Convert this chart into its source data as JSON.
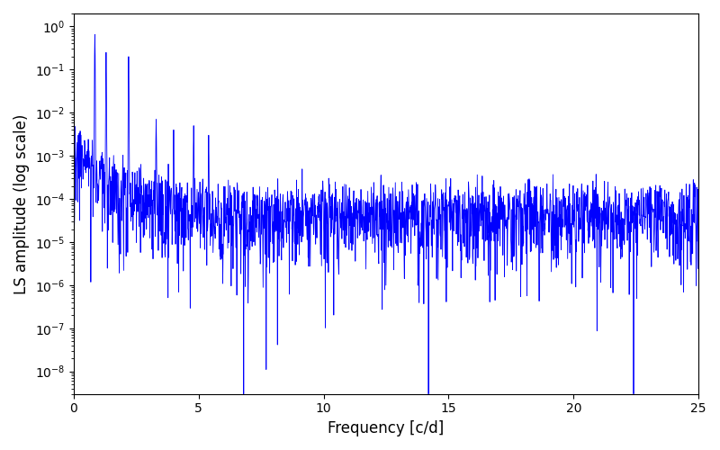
{
  "xlabel": "Frequency [c/d]",
  "ylabel": "LS amplitude (log scale)",
  "line_color": "#0000ff",
  "xlim": [
    0,
    25
  ],
  "ylim_bottom": 3e-09,
  "ylim_top": 2.0,
  "figsize": [
    8.0,
    5.0
  ],
  "dpi": 100,
  "seed": 7,
  "n_points": 2000
}
